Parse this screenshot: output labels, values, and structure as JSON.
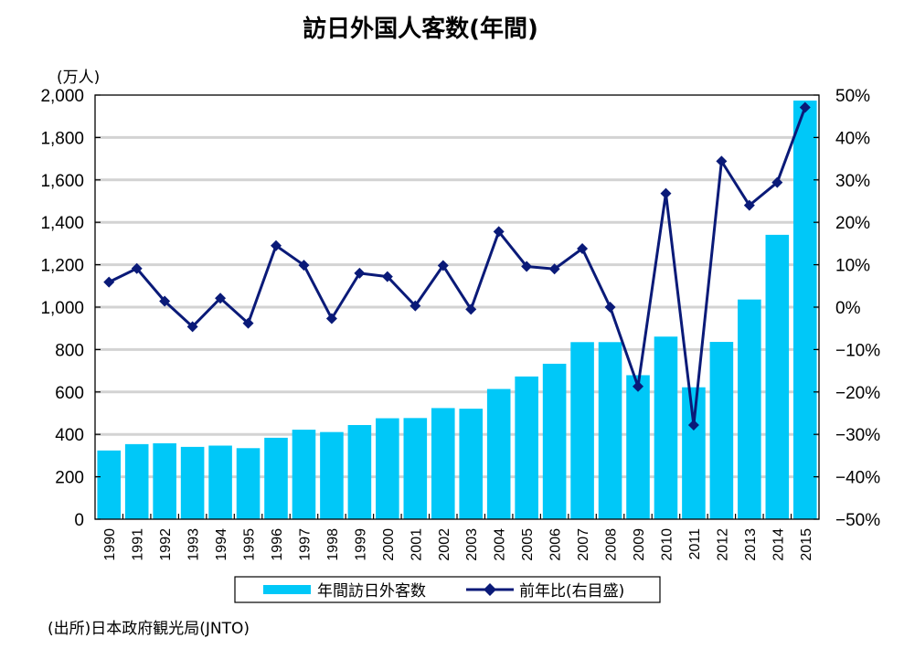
{
  "chart_data": {
    "type": "bar",
    "title": "訪日外国人客数(年間)",
    "left_unit_label": "(万人)",
    "source": "(出所)日本政府観光局(JNTO)",
    "categories": [
      "1990",
      "1991",
      "1992",
      "1993",
      "1994",
      "1995",
      "1996",
      "1997",
      "1998",
      "1999",
      "2000",
      "2001",
      "2002",
      "2003",
      "2004",
      "2005",
      "2006",
      "2007",
      "2008",
      "2009",
      "2010",
      "2011",
      "2012",
      "2013",
      "2014",
      "2015"
    ],
    "series": [
      {
        "name": "年間訪日外客数",
        "type": "bar",
        "axis": "left",
        "color": "#00C8F8",
        "values": [
          324,
          354,
          358,
          341,
          347,
          335,
          384,
          422,
          411,
          444,
          476,
          477,
          524,
          521,
          614,
          673,
          733,
          835,
          835,
          679,
          861,
          622,
          836,
          1036,
          1341,
          1974
        ]
      },
      {
        "name": "前年比(右目盛)",
        "type": "line",
        "axis": "right",
        "color": "#0A1A78",
        "marker": "diamond",
        "values": [
          5.9,
          9.1,
          1.4,
          -4.6,
          2.1,
          -3.8,
          14.5,
          9.9,
          -2.7,
          8.0,
          7.2,
          0.3,
          9.8,
          -0.5,
          17.8,
          9.6,
          9.0,
          13.8,
          0.0,
          -18.7,
          26.8,
          -27.8,
          34.4,
          24.0,
          29.4,
          47.1
        ]
      }
    ],
    "y_left": {
      "label": "(万人)",
      "ylim": [
        0,
        2000
      ],
      "ticks": [
        0,
        200,
        400,
        600,
        800,
        1000,
        1200,
        1400,
        1600,
        1800,
        2000
      ],
      "tick_labels": [
        "0",
        "200",
        "400",
        "600",
        "800",
        "1,000",
        "1,200",
        "1,400",
        "1,600",
        "1,800",
        "2,000"
      ]
    },
    "y_right": {
      "label": "",
      "ylim": [
        -50,
        50
      ],
      "ticks": [
        -50,
        -40,
        -30,
        -20,
        -10,
        0,
        10,
        20,
        30,
        40,
        50
      ],
      "tick_labels": [
        "-50%",
        "-40%",
        "-30%",
        "-20%",
        "-10%",
        "0%",
        "10%",
        "20%",
        "30%",
        "40%",
        "50%"
      ]
    },
    "xlabel": "",
    "grid": true,
    "grid_color": "#D3D3D3",
    "legend": {
      "position": "bottom",
      "entries": [
        "年間訪日外客数",
        "前年比(右目盛)"
      ]
    }
  }
}
